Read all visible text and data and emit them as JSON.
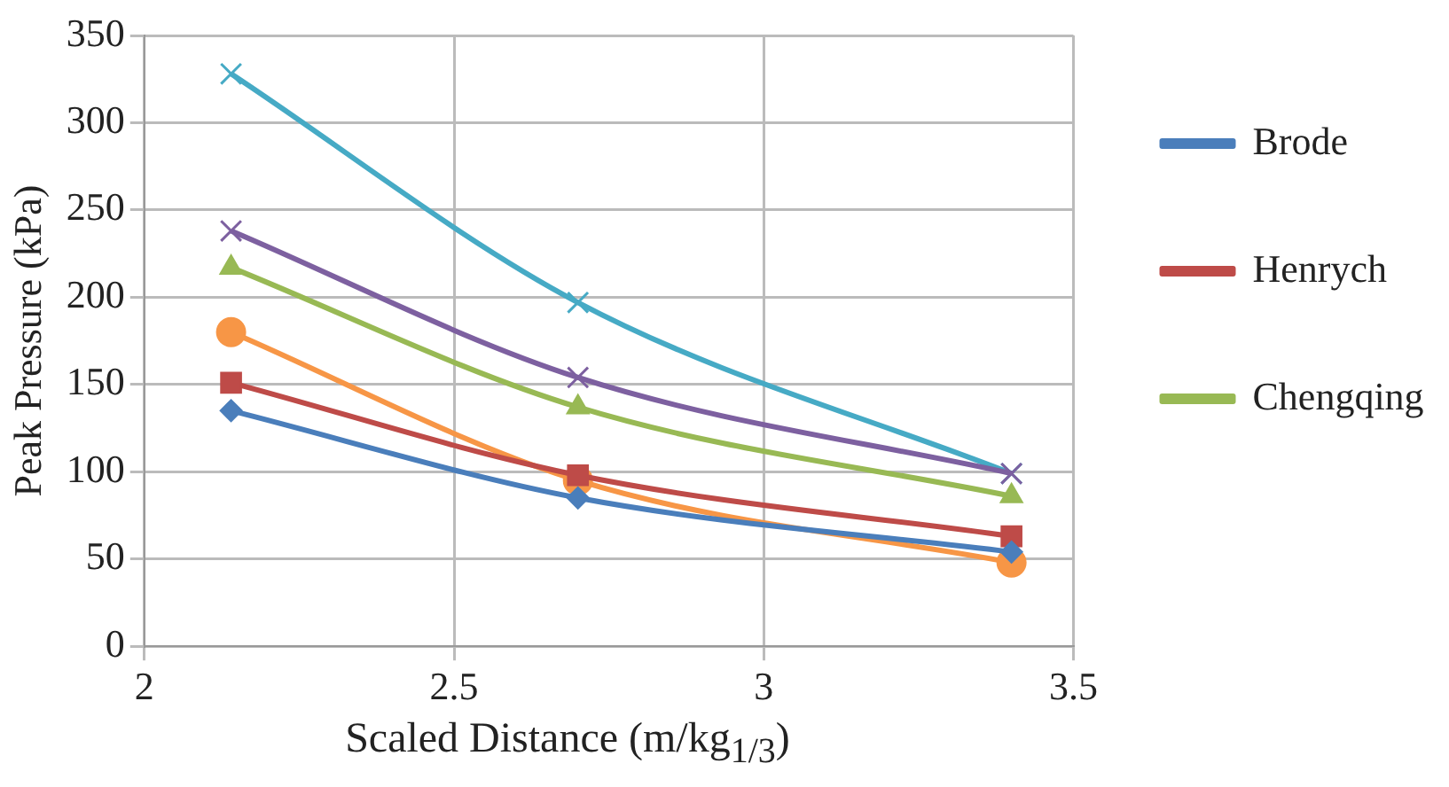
{
  "chart_data": {
    "type": "line",
    "xlabel": "Scaled Distance (m/kg$_{1/3}$)",
    "ylabel": "Peak Pressure (kPa)",
    "xlim": [
      2,
      3.5
    ],
    "xticks": [
      2,
      2.5,
      3,
      3.5
    ],
    "ylim": [
      0,
      350
    ],
    "yticks": [
      0,
      50,
      100,
      150,
      200,
      250,
      300,
      350
    ],
    "grid": true,
    "legend": "right",
    "series": [
      {
        "name": "Brode",
        "color": "#4a7ebb",
        "marker": "diamond",
        "x": [
          2.14,
          2.7,
          3.4
        ],
        "values": [
          135,
          85,
          54
        ]
      },
      {
        "name": "Henrych",
        "color": "#be4b48",
        "marker": "square",
        "x": [
          2.14,
          2.7,
          3.4
        ],
        "values": [
          151,
          98,
          63
        ]
      },
      {
        "name": "Chengqing",
        "color": "#98b954",
        "marker": "triangle",
        "x": [
          2.14,
          2.7,
          3.4
        ],
        "values": [
          217,
          137,
          86
        ]
      },
      {
        "color": "#7d60a0",
        "marker": "cross",
        "x": [
          2.14,
          2.7,
          3.4
        ],
        "values": [
          238,
          154,
          99
        ]
      },
      {
        "color": "#46aac5",
        "marker": "cross",
        "x": [
          2.14,
          2.7,
          3.4
        ],
        "values": [
          328,
          197,
          99
        ]
      },
      {
        "color": "#f79646",
        "marker": "circle",
        "x": [
          2.14,
          2.7,
          3.4
        ],
        "values": [
          180,
          95,
          48
        ]
      }
    ]
  }
}
